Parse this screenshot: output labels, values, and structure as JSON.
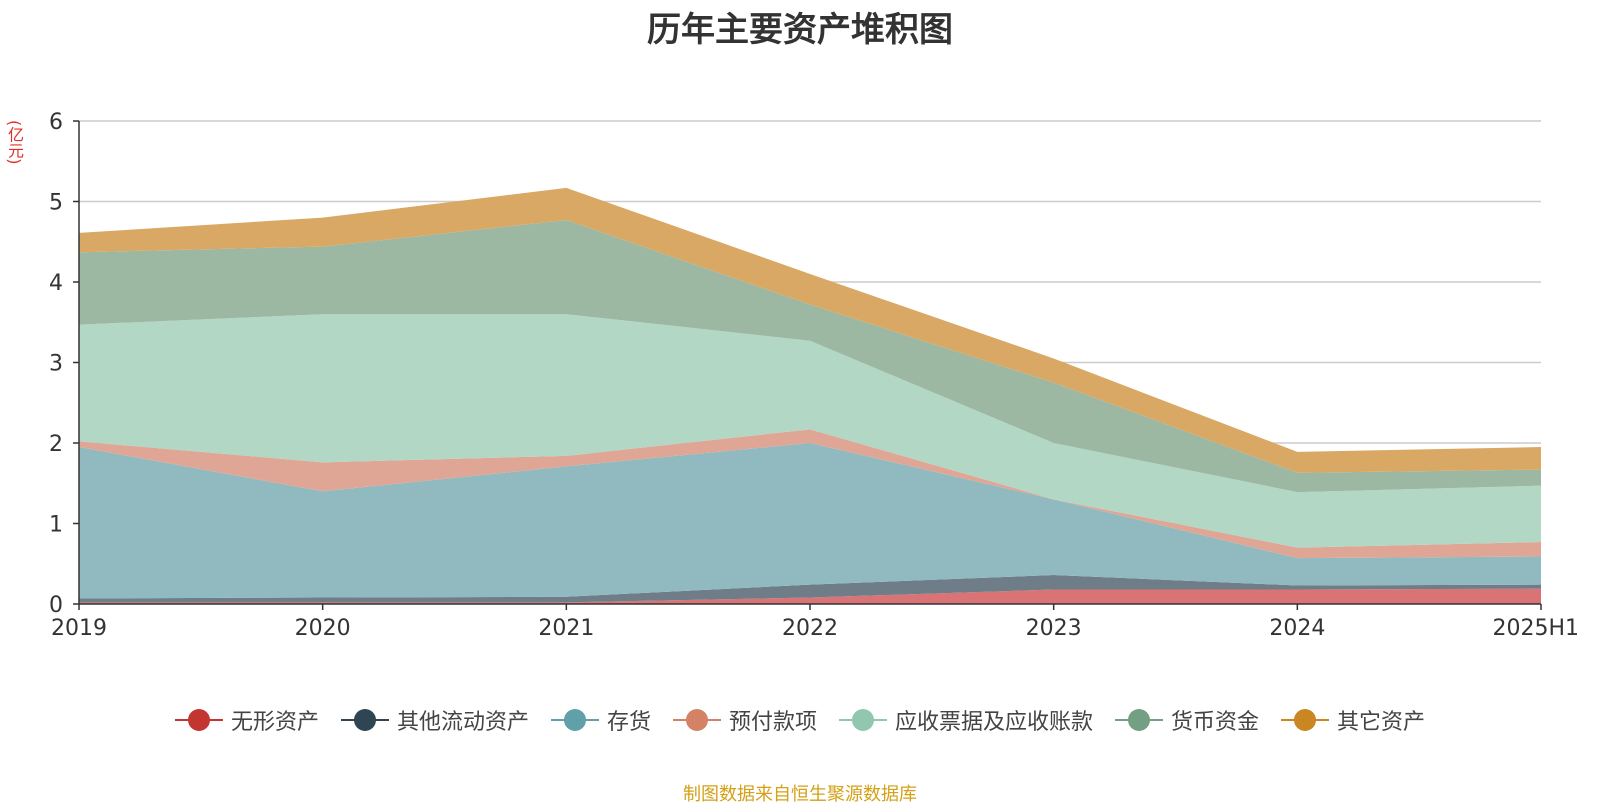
{
  "chart_data": {
    "type": "area",
    "stacked": true,
    "title": "历年主要资产堆积图",
    "ylabel": "(亿元)",
    "xlabel": "",
    "categories": [
      "2019",
      "2020",
      "2021",
      "2022",
      "2023",
      "2024",
      "2025H1"
    ],
    "ylim": [
      0,
      6
    ],
    "yticks": [
      0,
      1,
      2,
      3,
      4,
      5,
      6
    ],
    "grid": true,
    "legend_position": "bottom",
    "series": [
      {
        "name": "无形资产",
        "color": "#c23531",
        "fill": "#d97375",
        "values": [
          0.02,
          0.02,
          0.02,
          0.08,
          0.18,
          0.18,
          0.19
        ]
      },
      {
        "name": "其他流动资产",
        "color": "#2f4554",
        "fill": "#6e7d88",
        "values": [
          0.05,
          0.06,
          0.07,
          0.16,
          0.18,
          0.05,
          0.05
        ]
      },
      {
        "name": "存货",
        "color": "#61a0a8",
        "fill": "#90b9c0",
        "values": [
          1.88,
          1.32,
          1.62,
          1.76,
          0.94,
          0.34,
          0.35
        ]
      },
      {
        "name": "预付款项",
        "color": "#d48265",
        "fill": "#e0a695",
        "values": [
          0.07,
          0.36,
          0.13,
          0.17,
          0.0,
          0.13,
          0.18
        ]
      },
      {
        "name": "应收票据及应收账款",
        "color": "#91c7ae",
        "fill": "#b2d7c4",
        "values": [
          1.45,
          1.84,
          1.76,
          1.1,
          0.7,
          0.69,
          0.7
        ]
      },
      {
        "name": "货币资金",
        "color": "#749f83",
        "fill": "#9db8a2",
        "values": [
          0.9,
          0.84,
          1.17,
          0.45,
          0.75,
          0.24,
          0.2
        ]
      },
      {
        "name": "其它资产",
        "color": "#ca8622",
        "fill": "#d9a864",
        "values": [
          0.24,
          0.36,
          0.4,
          0.38,
          0.3,
          0.26,
          0.28
        ]
      }
    ]
  },
  "source_note": "制图数据来自恒生聚源数据库"
}
